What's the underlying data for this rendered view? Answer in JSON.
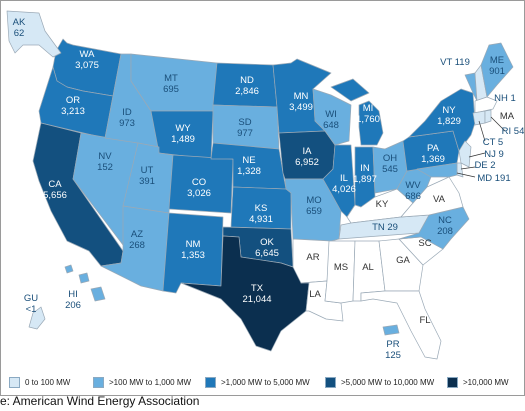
{
  "colors": {
    "c0": "#d6e8f5",
    "c1": "#69afdf",
    "c2": "#1f78b9",
    "c3": "#13507f",
    "c4": "#0b2f4f",
    "none": "#ffffff",
    "border": "#9aa9b6"
  },
  "legend": [
    {
      "label": "0 to 100 MW",
      "color": "c0"
    },
    {
      "label": ">100 MW to 1,000 MW",
      "color": "c1"
    },
    {
      "label": ">1,000 MW to 5,000 MW",
      "color": "c2"
    },
    {
      "label": ">5,000 MW to 10,000 MW",
      "color": "c3"
    },
    {
      "label": ">10,000 MW",
      "color": "c4"
    }
  ],
  "states": [
    {
      "abbr": "WA",
      "value": "3,075"
    },
    {
      "abbr": "OR",
      "value": "3,213"
    },
    {
      "abbr": "CA",
      "value": "5,656"
    },
    {
      "abbr": "NV",
      "value": "152"
    },
    {
      "abbr": "ID",
      "value": "973"
    },
    {
      "abbr": "MT",
      "value": "695"
    },
    {
      "abbr": "WY",
      "value": "1,489"
    },
    {
      "abbr": "UT",
      "value": "391"
    },
    {
      "abbr": "AZ",
      "value": "268"
    },
    {
      "abbr": "CO",
      "value": "3,026"
    },
    {
      "abbr": "NM",
      "value": "1,353"
    },
    {
      "abbr": "ND",
      "value": "2,846"
    },
    {
      "abbr": "SD",
      "value": "977"
    },
    {
      "abbr": "NE",
      "value": "1,328"
    },
    {
      "abbr": "KS",
      "value": "4,931"
    },
    {
      "abbr": "OK",
      "value": "6,645"
    },
    {
      "abbr": "TX",
      "value": "21,044"
    },
    {
      "abbr": "MN",
      "value": "3,499"
    },
    {
      "abbr": "IA",
      "value": "6,952"
    },
    {
      "abbr": "MO",
      "value": "659"
    },
    {
      "abbr": "AR",
      "value": ""
    },
    {
      "abbr": "LA",
      "value": ""
    },
    {
      "abbr": "WI",
      "value": "648"
    },
    {
      "abbr": "IL",
      "value": "4,026"
    },
    {
      "abbr": "MI",
      "value": "1,760"
    },
    {
      "abbr": "IN",
      "value": "1,897"
    },
    {
      "abbr": "OH",
      "value": "545"
    },
    {
      "abbr": "KY",
      "value": ""
    },
    {
      "abbr": "TN",
      "value": "29"
    },
    {
      "abbr": "MS",
      "value": ""
    },
    {
      "abbr": "AL",
      "value": ""
    },
    {
      "abbr": "GA",
      "value": ""
    },
    {
      "abbr": "FL",
      "value": ""
    },
    {
      "abbr": "SC",
      "value": ""
    },
    {
      "abbr": "NC",
      "value": "208"
    },
    {
      "abbr": "VA",
      "value": ""
    },
    {
      "abbr": "WV",
      "value": "686"
    },
    {
      "abbr": "PA",
      "value": "1,369"
    },
    {
      "abbr": "NY",
      "value": "1,829"
    },
    {
      "abbr": "VT",
      "value": "119"
    },
    {
      "abbr": "NH",
      "value": "1"
    },
    {
      "abbr": "ME",
      "value": "901"
    },
    {
      "abbr": "MA",
      "value": ""
    },
    {
      "abbr": "RI",
      "value": "54"
    },
    {
      "abbr": "CT",
      "value": "5"
    },
    {
      "abbr": "NJ",
      "value": "9"
    },
    {
      "abbr": "DE",
      "value": "2"
    },
    {
      "abbr": "MD",
      "value": "191"
    },
    {
      "abbr": "AK",
      "value": "62"
    },
    {
      "abbr": "HI",
      "value": "206"
    },
    {
      "abbr": "GU",
      "value": "<1"
    },
    {
      "abbr": "PR",
      "value": "125"
    }
  ],
  "source": "e: American Wind Energy Association"
}
